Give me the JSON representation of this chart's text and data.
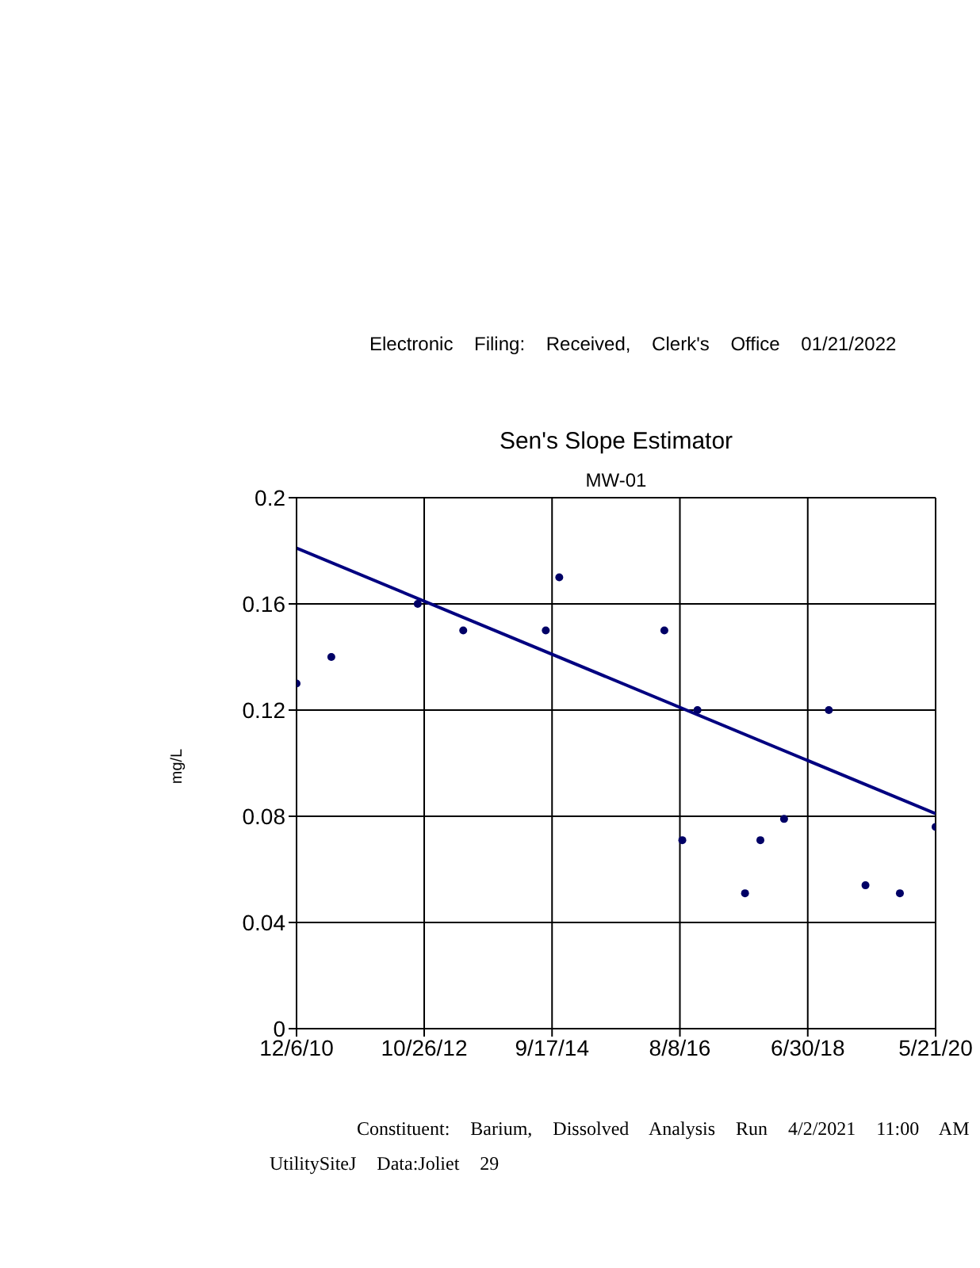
{
  "chart_data": {
    "type": "scatter",
    "title": "Sen's Slope Estimator",
    "subtitle": "MW-01",
    "ylabel": "mg/L",
    "annotations": [
      "Electronic Filing: Received, Clerk's Office 01/21/2022",
      "Constituent: Barium, Dissolved Analysis Run 4/2/2021 11:00 AM",
      "UtilitySiteJ Data:Joliet 29"
    ],
    "series": [
      {
        "color": "#000066",
        "marker": "circle",
        "x": [
          "2010-12-06",
          "2011-06-12",
          "2012-09-21",
          "2013-05-25",
          "2014-08-14",
          "2014-10-26",
          "2016-05-16",
          "2016-08-21",
          "2016-11-11",
          "2017-07-26",
          "2017-10-17",
          "2018-02-22",
          "2018-10-22",
          "2019-05-08",
          "2019-11-10",
          "2020-05-21"
        ],
        "values": [
          0.13,
          0.14,
          0.16,
          0.15,
          0.15,
          0.17,
          0.15,
          0.071,
          0.12,
          0.051,
          0.071,
          0.079,
          0.12,
          0.054,
          0.051,
          0.076
        ]
      },
      {
        "type": "line",
        "color": "#000080",
        "line_style": "solid",
        "x": [
          "2010-12-06",
          "2020-05-21"
        ],
        "values": [
          0.181,
          0.081
        ]
      }
    ],
    "xlim": [
      "2010-12-06",
      "2020-05-21"
    ],
    "xticks": [
      {
        "value": "2010-12-06",
        "label": "12/6/10"
      },
      {
        "value": "2012-10-26",
        "label": "10/26/12"
      },
      {
        "value": "2014-09-17",
        "label": "9/17/14"
      },
      {
        "value": "2016-08-08",
        "label": "8/8/16"
      },
      {
        "value": "2018-06-30",
        "label": "6/30/18"
      },
      {
        "value": "2020-05-21",
        "label": "5/21/20"
      }
    ],
    "ylim": [
      0,
      0.2
    ],
    "yticks": [
      0,
      0.04,
      0.08,
      0.12,
      0.16,
      0.2
    ],
    "grid": true
  }
}
